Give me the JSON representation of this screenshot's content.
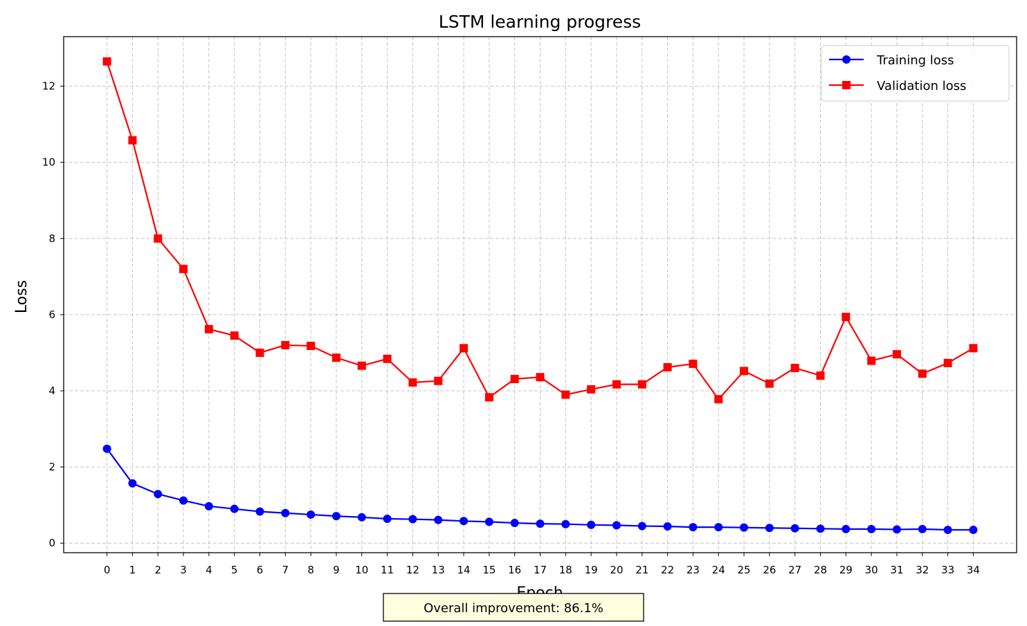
{
  "chart_data": {
    "type": "line",
    "title": "LSTM learning progress",
    "xlabel": "Epoch",
    "ylabel": "Loss",
    "x": [
      0,
      1,
      2,
      3,
      4,
      5,
      6,
      7,
      8,
      9,
      10,
      11,
      12,
      13,
      14,
      15,
      16,
      17,
      18,
      19,
      20,
      21,
      22,
      23,
      24,
      25,
      26,
      27,
      28,
      29,
      30,
      31,
      32,
      33,
      34
    ],
    "xlim": [
      -1.7,
      35.7
    ],
    "ylim": [
      -0.25,
      13.3
    ],
    "yticks": [
      0,
      2,
      4,
      6,
      8,
      10,
      12
    ],
    "grid": true,
    "legend_position": "top-right",
    "series": [
      {
        "name": "Training loss",
        "color": "#0000ff",
        "marker": "circle",
        "values": [
          2.48,
          1.57,
          1.29,
          1.12,
          0.97,
          0.9,
          0.83,
          0.79,
          0.75,
          0.71,
          0.68,
          0.64,
          0.63,
          0.61,
          0.58,
          0.56,
          0.53,
          0.51,
          0.5,
          0.48,
          0.47,
          0.45,
          0.44,
          0.42,
          0.42,
          0.41,
          0.4,
          0.39,
          0.38,
          0.37,
          0.37,
          0.36,
          0.37,
          0.35,
          0.35
        ]
      },
      {
        "name": "Validation loss",
        "color": "#ff0000",
        "marker": "square",
        "values": [
          12.65,
          10.58,
          8.0,
          7.2,
          5.62,
          5.45,
          5.0,
          5.2,
          5.18,
          4.87,
          4.66,
          4.84,
          4.22,
          4.26,
          5.12,
          3.83,
          4.31,
          4.36,
          3.9,
          4.04,
          4.17,
          4.17,
          4.62,
          4.71,
          3.78,
          4.52,
          4.19,
          4.6,
          4.4,
          5.94,
          4.79,
          4.96,
          4.45,
          4.73,
          5.12
        ]
      }
    ],
    "annotation": "Overall improvement: 86.1%"
  }
}
